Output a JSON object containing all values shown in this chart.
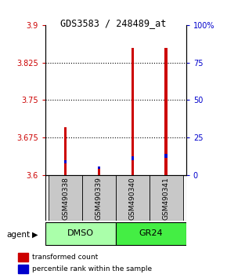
{
  "title": "GDS3583 / 248489_at",
  "samples": [
    "GSM490338",
    "GSM490339",
    "GSM490340",
    "GSM490341"
  ],
  "group_labels": [
    "DMSO",
    "GR24"
  ],
  "bar_bottom": 3.6,
  "red_tops": [
    3.695,
    3.614,
    3.855,
    3.854
  ],
  "blue_bottoms": [
    3.623,
    3.612,
    3.63,
    3.634
  ],
  "blue_tops": [
    3.63,
    3.618,
    3.638,
    3.642
  ],
  "red_color": "#cc0000",
  "blue_color": "#0000cc",
  "ylim_left": [
    3.6,
    3.9
  ],
  "ylim_right": [
    0,
    100
  ],
  "yticks_left": [
    3.6,
    3.675,
    3.75,
    3.825,
    3.9
  ],
  "yticks_right": [
    0,
    25,
    50,
    75,
    100
  ],
  "ytick_labels_left": [
    "3.6",
    "3.675",
    "3.75",
    "3.825",
    "3.9"
  ],
  "ytick_labels_right": [
    "0",
    "25",
    "50",
    "75",
    "100%"
  ],
  "grid_ticks": [
    3.675,
    3.75,
    3.825
  ],
  "agent_label": "agent",
  "legend_red": "transformed count",
  "legend_blue": "percentile rank within the sample",
  "bar_width": 0.08,
  "sample_panel_color": "#c8c8c8",
  "left_tick_color": "#cc0000",
  "right_tick_color": "#0000cc",
  "dmso_color": "#aaffaa",
  "gr24_color": "#44ee44"
}
